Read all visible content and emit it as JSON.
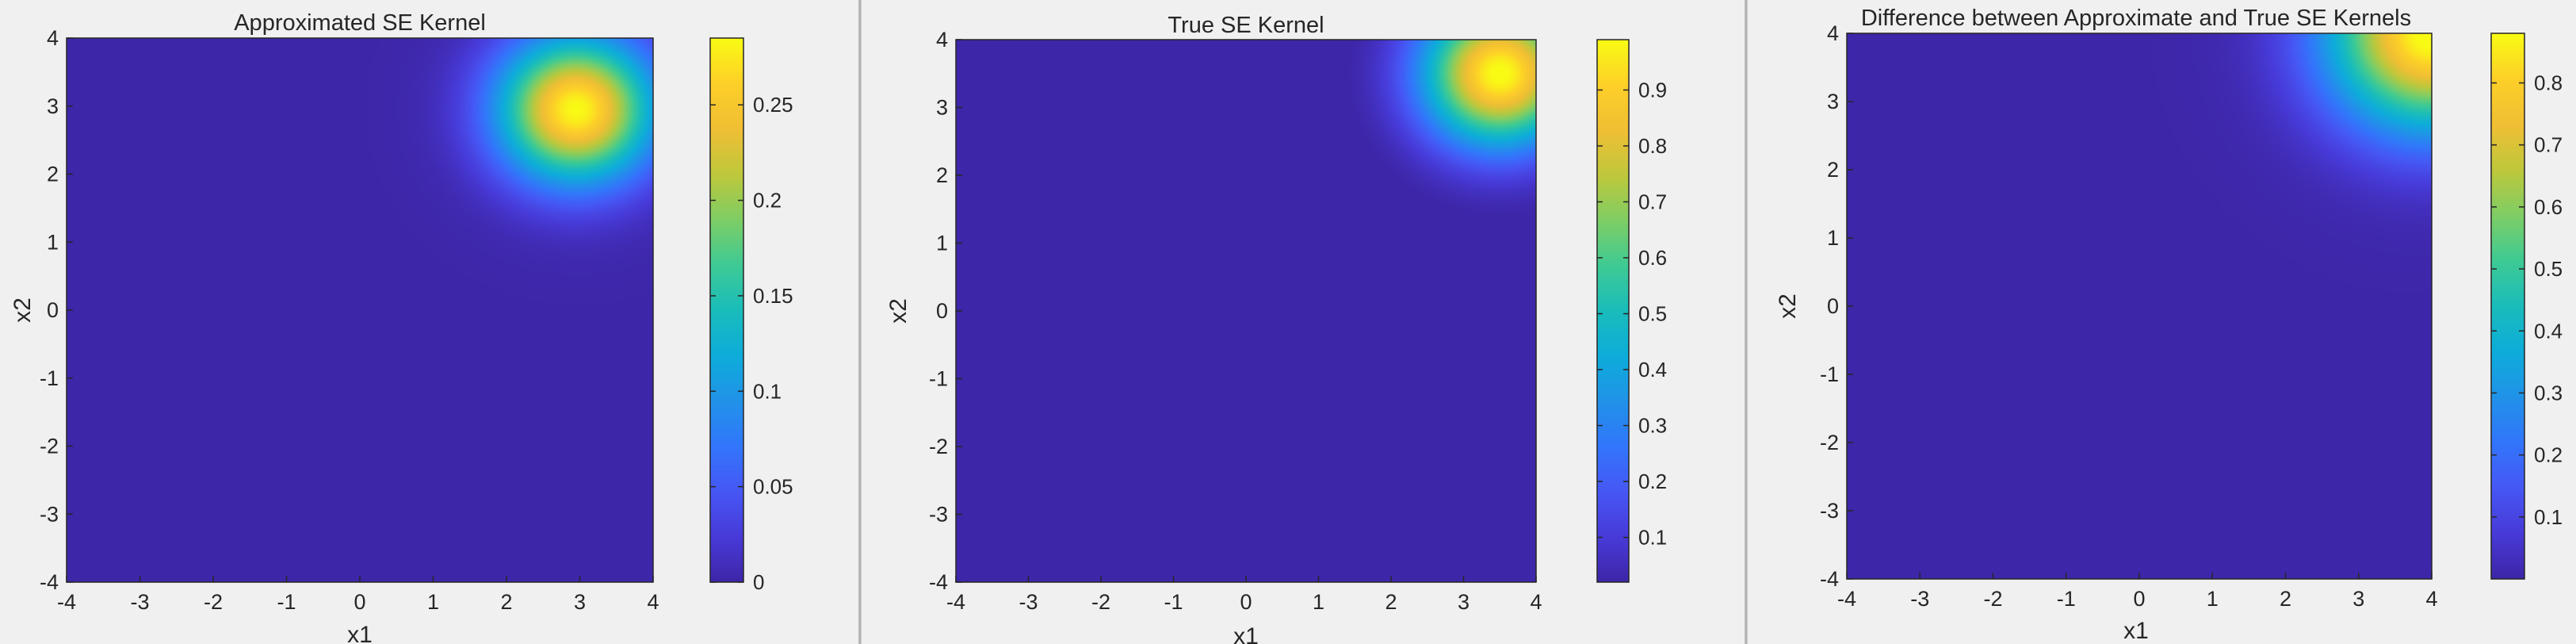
{
  "chart_data": [
    {
      "type": "heatmap",
      "title": "Approximated SE Kernel",
      "xlabel": "x1",
      "ylabel": "x2",
      "xlim": [
        -4,
        4
      ],
      "ylim": [
        -4,
        4
      ],
      "xticks": [
        "-4",
        "-3",
        "-2",
        "-1",
        "0",
        "1",
        "2",
        "3",
        "4"
      ],
      "yticks": [
        "-4",
        "-3",
        "-2",
        "-1",
        "0",
        "1",
        "2",
        "3",
        "4"
      ],
      "colormap": "parula",
      "clim": [
        0,
        0.285
      ],
      "colorbar_ticks": [
        "0",
        "0.05",
        "0.1",
        "0.15",
        "0.2",
        "0.25"
      ],
      "peak": {
        "x1": 2.95,
        "x2": 2.95,
        "value": 0.285
      },
      "spread": 0.75,
      "grid": false
    },
    {
      "type": "heatmap",
      "title": "True SE Kernel",
      "xlabel": "x1",
      "ylabel": "x2",
      "xlim": [
        -4,
        4
      ],
      "ylim": [
        -4,
        4
      ],
      "xticks": [
        "-4",
        "-3",
        "-2",
        "-1",
        "0",
        "1",
        "2",
        "3",
        "4"
      ],
      "yticks": [
        "-4",
        "-3",
        "-2",
        "-1",
        "0",
        "1",
        "2",
        "3",
        "4"
      ],
      "colormap": "parula",
      "clim": [
        0.02,
        0.99
      ],
      "colorbar_ticks": [
        "0.1",
        "0.2",
        "0.3",
        "0.4",
        "0.5",
        "0.6",
        "0.7",
        "0.8",
        "0.9"
      ],
      "peak": {
        "x1": 3.5,
        "x2": 3.5,
        "value": 1.0
      },
      "spread": 0.75,
      "grid": false
    },
    {
      "type": "heatmap",
      "title": "Difference between Approximate and True SE Kernels",
      "xlabel": "x1",
      "ylabel": "x2",
      "xlim": [
        -4,
        4
      ],
      "ylim": [
        -4,
        4
      ],
      "xticks": [
        "-4",
        "-3",
        "-2",
        "-1",
        "0",
        "1",
        "2",
        "3",
        "4"
      ],
      "yticks": [
        "-4",
        "-3",
        "-2",
        "-1",
        "0",
        "1",
        "2",
        "3",
        "4"
      ],
      "colormap": "parula",
      "clim": [
        0,
        0.88
      ],
      "colorbar_ticks": [
        "0.1",
        "0.2",
        "0.3",
        "0.4",
        "0.5",
        "0.6",
        "0.7",
        "0.8"
      ],
      "peak": {
        "x1": 4.0,
        "x2": 4.0,
        "value": 0.9
      },
      "spread": 1.0,
      "grid": false
    }
  ]
}
